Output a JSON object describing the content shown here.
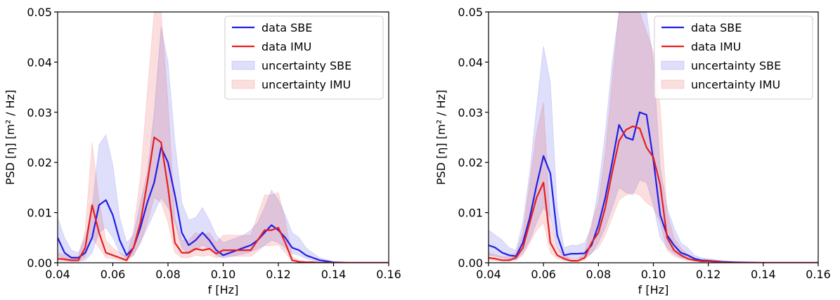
{
  "chart_data": [
    {
      "type": "line",
      "xlabel": "f [Hz]",
      "ylabel": "PSD [η] [m² / Hz]",
      "xlim": [
        0.04,
        0.16
      ],
      "ylim": [
        0,
        0.05
      ],
      "xticks": [
        "0.04",
        "0.06",
        "0.08",
        "0.10",
        "0.12",
        "0.14",
        "0.16"
      ],
      "yticks": [
        "0.00",
        "0.01",
        "0.02",
        "0.03",
        "0.04",
        "0.05"
      ],
      "legend_position": "top-right",
      "series": [
        {
          "name": "data SBE",
          "color": "#1f1fe6",
          "kind": "line",
          "x": [
            0.04,
            0.0425,
            0.045,
            0.0475,
            0.05,
            0.0525,
            0.055,
            0.0575,
            0.06,
            0.0625,
            0.065,
            0.0675,
            0.07,
            0.0725,
            0.075,
            0.0775,
            0.08,
            0.0825,
            0.085,
            0.0875,
            0.09,
            0.0925,
            0.095,
            0.0975,
            0.1,
            0.1025,
            0.105,
            0.1075,
            0.11,
            0.1125,
            0.115,
            0.1175,
            0.12,
            0.1225,
            0.125,
            0.1275,
            0.13,
            0.1325,
            0.135,
            0.1375,
            0.14,
            0.145,
            0.15,
            0.16
          ],
          "y": [
            0.005,
            0.002,
            0.001,
            0.001,
            0.002,
            0.005,
            0.0115,
            0.0125,
            0.0095,
            0.0045,
            0.0015,
            0.003,
            0.007,
            0.012,
            0.016,
            0.023,
            0.02,
            0.0135,
            0.006,
            0.0035,
            0.0045,
            0.006,
            0.0045,
            0.0025,
            0.0015,
            0.002,
            0.0025,
            0.003,
            0.0035,
            0.0045,
            0.006,
            0.0075,
            0.0065,
            0.005,
            0.003,
            0.0025,
            0.0015,
            0.001,
            0.0005,
            0.0003,
            0.0001,
            0.0,
            0.0,
            0.0
          ]
        },
        {
          "name": "data IMU",
          "color": "#e61f1f",
          "kind": "line",
          "x": [
            0.04,
            0.0425,
            0.045,
            0.0475,
            0.05,
            0.0525,
            0.055,
            0.0575,
            0.06,
            0.0625,
            0.065,
            0.0675,
            0.07,
            0.0725,
            0.075,
            0.0775,
            0.08,
            0.0825,
            0.085,
            0.0875,
            0.09,
            0.0925,
            0.095,
            0.0975,
            0.1,
            0.1025,
            0.105,
            0.1075,
            0.11,
            0.1125,
            0.115,
            0.1175,
            0.12,
            0.1225,
            0.125,
            0.1275,
            0.13,
            0.1325,
            0.135,
            0.1375,
            0.14,
            0.145,
            0.15,
            0.16
          ],
          "y": [
            0.0008,
            0.0007,
            0.0005,
            0.0005,
            0.003,
            0.0115,
            0.006,
            0.002,
            0.0015,
            0.001,
            0.0005,
            0.003,
            0.008,
            0.016,
            0.025,
            0.024,
            0.015,
            0.004,
            0.002,
            0.002,
            0.0028,
            0.0025,
            0.0028,
            0.0018,
            0.0025,
            0.0025,
            0.0025,
            0.0025,
            0.0025,
            0.0045,
            0.0065,
            0.0065,
            0.007,
            0.004,
            0.0005,
            0.0002,
            0.0001,
            0.0001,
            0.0,
            0.0,
            0.0,
            0.0,
            0.0,
            0.0
          ]
        },
        {
          "name": "uncertainty SBE",
          "color": "#1f1fe6",
          "kind": "band",
          "opacity": 0.14,
          "x": [
            0.04,
            0.0425,
            0.045,
            0.0475,
            0.05,
            0.0525,
            0.055,
            0.0575,
            0.06,
            0.0625,
            0.065,
            0.0675,
            0.07,
            0.0725,
            0.075,
            0.0775,
            0.08,
            0.0825,
            0.085,
            0.0875,
            0.09,
            0.0925,
            0.095,
            0.0975,
            0.1,
            0.1025,
            0.105,
            0.1075,
            0.11,
            0.1125,
            0.115,
            0.1175,
            0.12,
            0.1225,
            0.125,
            0.1275,
            0.13,
            0.1325,
            0.135,
            0.1375,
            0.14,
            0.145,
            0.15,
            0.16
          ],
          "y_low": [
            0.0015,
            0.0005,
            0.0003,
            0.0003,
            0.0005,
            0.002,
            0.006,
            0.007,
            0.005,
            0.002,
            0.0008,
            0.0015,
            0.004,
            0.007,
            0.01,
            0.013,
            0.011,
            0.008,
            0.003,
            0.0018,
            0.0025,
            0.0035,
            0.0028,
            0.0015,
            0.0009,
            0.0012,
            0.0015,
            0.0018,
            0.0022,
            0.0028,
            0.0035,
            0.0045,
            0.004,
            0.003,
            0.0018,
            0.0015,
            0.0008,
            0.0005,
            0.0002,
            0.0001,
            0.0,
            0.0,
            0.0,
            0.0
          ],
          "y_high": [
            0.009,
            0.005,
            0.0025,
            0.002,
            0.005,
            0.011,
            0.0235,
            0.0255,
            0.0195,
            0.009,
            0.004,
            0.0055,
            0.012,
            0.018,
            0.03,
            0.047,
            0.04,
            0.024,
            0.012,
            0.0085,
            0.009,
            0.011,
            0.0085,
            0.0055,
            0.004,
            0.0045,
            0.005,
            0.0055,
            0.0065,
            0.008,
            0.011,
            0.0145,
            0.0125,
            0.0095,
            0.006,
            0.005,
            0.003,
            0.002,
            0.001,
            0.0006,
            0.0002,
            0.0001,
            0.0,
            0.0
          ]
        },
        {
          "name": "uncertainty IMU",
          "color": "#e61f1f",
          "kind": "band",
          "opacity": 0.14,
          "x": [
            0.04,
            0.0425,
            0.045,
            0.0475,
            0.05,
            0.0525,
            0.055,
            0.0575,
            0.06,
            0.0625,
            0.065,
            0.0675,
            0.07,
            0.0725,
            0.075,
            0.0775,
            0.08,
            0.0825,
            0.085,
            0.0875,
            0.09,
            0.0925,
            0.095,
            0.0975,
            0.1,
            0.1025,
            0.105,
            0.1075,
            0.11,
            0.1125,
            0.115,
            0.1175,
            0.12,
            0.1225,
            0.125,
            0.1275,
            0.13,
            0.1325,
            0.135,
            0.1375,
            0.14,
            0.145,
            0.15,
            0.16
          ],
          "y_low": [
            0.0003,
            0.0002,
            0.0002,
            0.0002,
            0.0012,
            0.005,
            0.003,
            0.001,
            0.0008,
            0.0005,
            0.0002,
            0.0015,
            0.004,
            0.008,
            0.013,
            0.012,
            0.008,
            0.002,
            0.001,
            0.001,
            0.0015,
            0.0013,
            0.0015,
            0.001,
            0.0013,
            0.0013,
            0.0013,
            0.0013,
            0.0013,
            0.0023,
            0.0034,
            0.0034,
            0.0036,
            0.002,
            0.0003,
            0.0001,
            0.0,
            0.0,
            0.0,
            0.0,
            0.0,
            0.0,
            0.0,
            0.0
          ],
          "y_high": [
            0.002,
            0.0015,
            0.0012,
            0.0012,
            0.0065,
            0.024,
            0.0125,
            0.0045,
            0.003,
            0.002,
            0.0012,
            0.0065,
            0.017,
            0.034,
            0.05,
            0.05,
            0.032,
            0.009,
            0.0045,
            0.0045,
            0.006,
            0.0055,
            0.006,
            0.004,
            0.0055,
            0.0055,
            0.0055,
            0.0055,
            0.0055,
            0.0095,
            0.0135,
            0.0135,
            0.014,
            0.0085,
            0.0012,
            0.0005,
            0.0003,
            0.0003,
            0.0001,
            0.0,
            0.0,
            0.0,
            0.0,
            0.0
          ]
        }
      ]
    },
    {
      "type": "line",
      "xlabel": "f [Hz]",
      "ylabel": "PSD [η] [m² / Hz]",
      "xlim": [
        0.04,
        0.16
      ],
      "ylim": [
        0,
        0.05
      ],
      "xticks": [
        "0.04",
        "0.06",
        "0.08",
        "0.10",
        "0.12",
        "0.14",
        "0.16"
      ],
      "yticks": [
        "0.00",
        "0.01",
        "0.02",
        "0.03",
        "0.04",
        "0.05"
      ],
      "legend_position": "top-right",
      "series": [
        {
          "name": "data SBE",
          "color": "#1f1fe6",
          "kind": "line",
          "x": [
            0.04,
            0.0425,
            0.045,
            0.0475,
            0.05,
            0.0525,
            0.055,
            0.0575,
            0.06,
            0.0625,
            0.065,
            0.0675,
            0.07,
            0.0725,
            0.075,
            0.0775,
            0.08,
            0.0825,
            0.085,
            0.0875,
            0.09,
            0.0925,
            0.095,
            0.0975,
            0.1,
            0.1025,
            0.105,
            0.1075,
            0.11,
            0.1125,
            0.115,
            0.1175,
            0.12,
            0.1225,
            0.125,
            0.13,
            0.14,
            0.15,
            0.16
          ],
          "y": [
            0.0035,
            0.003,
            0.002,
            0.0015,
            0.0013,
            0.004,
            0.009,
            0.0155,
            0.0213,
            0.0178,
            0.0055,
            0.0015,
            0.0018,
            0.0018,
            0.0019,
            0.0035,
            0.0075,
            0.013,
            0.02,
            0.0275,
            0.025,
            0.0245,
            0.03,
            0.0295,
            0.0205,
            0.0095,
            0.0055,
            0.0035,
            0.002,
            0.0015,
            0.0008,
            0.0005,
            0.0004,
            0.0003,
            0.0002,
            0.0001,
            0.0,
            0.0,
            0.0
          ]
        },
        {
          "name": "data IMU",
          "color": "#e61f1f",
          "kind": "line",
          "x": [
            0.04,
            0.0425,
            0.045,
            0.0475,
            0.05,
            0.0525,
            0.055,
            0.0575,
            0.06,
            0.0625,
            0.065,
            0.0675,
            0.07,
            0.0725,
            0.075,
            0.0775,
            0.08,
            0.0825,
            0.085,
            0.0875,
            0.09,
            0.0925,
            0.095,
            0.0975,
            0.1,
            0.1025,
            0.105,
            0.1075,
            0.11,
            0.1125,
            0.115,
            0.1175,
            0.12,
            0.1225,
            0.125,
            0.13,
            0.14,
            0.15,
            0.16
          ],
          "y": [
            0.001,
            0.0008,
            0.0005,
            0.0005,
            0.001,
            0.003,
            0.008,
            0.013,
            0.016,
            0.004,
            0.0015,
            0.0008,
            0.0004,
            0.0004,
            0.001,
            0.004,
            0.006,
            0.011,
            0.018,
            0.0243,
            0.0265,
            0.0272,
            0.0268,
            0.023,
            0.021,
            0.0155,
            0.005,
            0.0025,
            0.0015,
            0.0008,
            0.0005,
            0.0003,
            0.0003,
            0.0002,
            0.0001,
            0.0,
            0.0,
            0.0,
            0.0
          ]
        },
        {
          "name": "uncertainty SBE",
          "color": "#1f1fe6",
          "kind": "band",
          "opacity": 0.14,
          "x": [
            0.04,
            0.0425,
            0.045,
            0.0475,
            0.05,
            0.0525,
            0.055,
            0.0575,
            0.06,
            0.0625,
            0.065,
            0.0675,
            0.07,
            0.0725,
            0.075,
            0.0775,
            0.08,
            0.0825,
            0.085,
            0.0875,
            0.09,
            0.0925,
            0.095,
            0.0975,
            0.1,
            0.1025,
            0.105,
            0.1075,
            0.11,
            0.1125,
            0.115,
            0.1175,
            0.12,
            0.1225,
            0.125,
            0.13,
            0.14,
            0.15,
            0.16
          ],
          "y_low": [
            0.0015,
            0.0013,
            0.001,
            0.0007,
            0.0006,
            0.002,
            0.0045,
            0.008,
            0.011,
            0.009,
            0.003,
            0.0008,
            0.0009,
            0.0009,
            0.001,
            0.0018,
            0.004,
            0.007,
            0.011,
            0.015,
            0.014,
            0.0135,
            0.0165,
            0.016,
            0.0115,
            0.005,
            0.003,
            0.0018,
            0.001,
            0.0008,
            0.0004,
            0.0002,
            0.0002,
            0.0001,
            0.0001,
            0.0,
            0.0,
            0.0,
            0.0
          ],
          "y_high": [
            0.0065,
            0.0055,
            0.0045,
            0.003,
            0.0025,
            0.008,
            0.018,
            0.031,
            0.0432,
            0.036,
            0.011,
            0.003,
            0.0035,
            0.0035,
            0.004,
            0.007,
            0.015,
            0.026,
            0.04,
            0.05,
            0.05,
            0.05,
            0.05,
            0.05,
            0.04,
            0.019,
            0.011,
            0.007,
            0.004,
            0.003,
            0.0015,
            0.001,
            0.0008,
            0.0006,
            0.0004,
            0.0002,
            0.0,
            0.0,
            0.0
          ]
        },
        {
          "name": "uncertainty IMU",
          "color": "#e61f1f",
          "kind": "band",
          "opacity": 0.14,
          "x": [
            0.04,
            0.0425,
            0.045,
            0.0475,
            0.05,
            0.0525,
            0.055,
            0.0575,
            0.06,
            0.0625,
            0.065,
            0.0675,
            0.07,
            0.0725,
            0.075,
            0.0775,
            0.08,
            0.0825,
            0.085,
            0.0875,
            0.09,
            0.0925,
            0.095,
            0.0975,
            0.1,
            0.1025,
            0.105,
            0.1075,
            0.11,
            0.1125,
            0.115,
            0.1175,
            0.12,
            0.1225,
            0.125,
            0.13,
            0.14,
            0.15,
            0.16
          ],
          "y_low": [
            0.0005,
            0.0004,
            0.0003,
            0.0003,
            0.0005,
            0.0015,
            0.004,
            0.0065,
            0.008,
            0.002,
            0.0008,
            0.0004,
            0.0002,
            0.0002,
            0.0005,
            0.002,
            0.003,
            0.0055,
            0.009,
            0.0125,
            0.0135,
            0.014,
            0.0135,
            0.012,
            0.011,
            0.008,
            0.0025,
            0.0013,
            0.0008,
            0.0004,
            0.0003,
            0.0002,
            0.0002,
            0.0001,
            0.0,
            0.0,
            0.0,
            0.0,
            0.0
          ],
          "y_high": [
            0.002,
            0.0016,
            0.0012,
            0.0012,
            0.002,
            0.006,
            0.016,
            0.026,
            0.032,
            0.008,
            0.003,
            0.0016,
            0.0008,
            0.0008,
            0.002,
            0.008,
            0.012,
            0.022,
            0.036,
            0.05,
            0.05,
            0.05,
            0.05,
            0.046,
            0.042,
            0.031,
            0.01,
            0.005,
            0.003,
            0.0016,
            0.001,
            0.0006,
            0.0006,
            0.0004,
            0.0002,
            0.0,
            0.0,
            0.0,
            0.0
          ]
        }
      ]
    }
  ]
}
